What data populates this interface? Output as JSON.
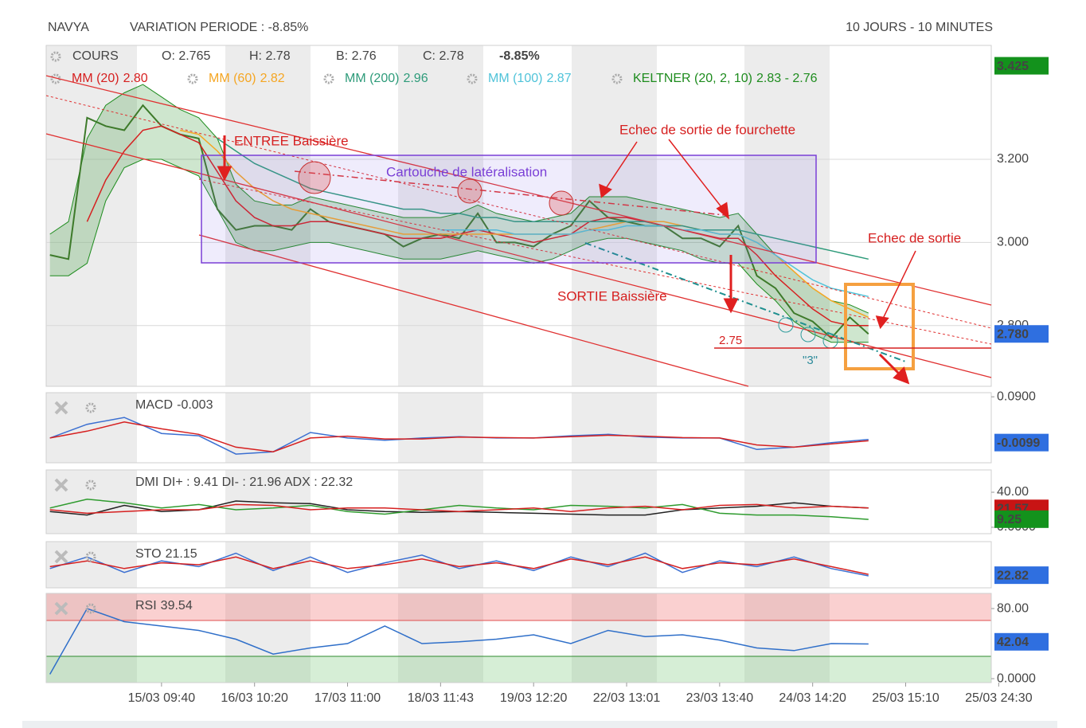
{
  "header": {
    "symbol": "NAVYA",
    "variation": "VARIATION PERIODE : -8.85%",
    "period": "10 JOURS - 10 MINUTES"
  },
  "chart_data": [
    {
      "type": "line",
      "ohlc": [
        "O: 2.765",
        "H: 2.78",
        "B: 2.76",
        "C: 2.78"
      ],
      "change": "-8.85%",
      "xlim": [
        -1.24,
        8.92
      ],
      "ylim": [
        2.654,
        3.474
      ],
      "yticks": [
        {
          "value": 2.8,
          "label": "2.800"
        },
        {
          "value": 3.0,
          "label": "3.000"
        },
        {
          "value": 3.2,
          "label": "3.200"
        }
      ],
      "grid": true,
      "badges": [
        {
          "value": 3.425,
          "label": "3.425",
          "color": "#13921c"
        },
        {
          "value": 2.78,
          "label": "2.780",
          "color": "#2f6fe0"
        }
      ],
      "x": [
        -1.2,
        -1.0,
        -0.8,
        -0.6,
        -0.4,
        -0.2,
        0.0,
        0.2,
        0.4,
        0.6,
        0.8,
        1.0,
        1.2,
        1.4,
        1.6,
        1.8,
        2.0,
        2.2,
        2.4,
        2.6,
        2.8,
        3.0,
        3.2,
        3.4,
        3.6,
        3.8,
        4.0,
        4.2,
        4.4,
        4.6,
        4.8,
        5.0,
        5.2,
        5.4,
        5.6,
        5.8,
        6.0,
        6.2,
        6.4,
        6.6,
        6.8,
        7.0,
        7.2,
        7.4,
        7.6
      ],
      "series": [
        {
          "name": "COURS",
          "color": "#3d7a2a",
          "values": [
            2.97,
            2.96,
            3.3,
            3.28,
            3.27,
            3.33,
            3.28,
            3.26,
            3.25,
            3.08,
            3.03,
            3.04,
            3.04,
            3.03,
            3.08,
            3.05,
            3.04,
            3.03,
            3.02,
            2.99,
            3.01,
            3.02,
            3.01,
            3.07,
            3.0,
            3.0,
            2.99,
            3.02,
            3.04,
            3.1,
            3.06,
            3.05,
            3.04,
            3.04,
            3.01,
            3.01,
            2.99,
            3.04,
            2.92,
            2.89,
            2.83,
            2.81,
            2.77,
            2.82,
            2.78
          ]
        },
        {
          "name": "MM (20)",
          "legend_value": "2.80",
          "color": "#d62020",
          "values": [
            null,
            null,
            3.05,
            3.15,
            3.22,
            3.27,
            3.28,
            3.26,
            3.24,
            3.17,
            3.1,
            3.06,
            3.04,
            3.04,
            3.05,
            3.05,
            3.04,
            3.03,
            3.02,
            3.01,
            3.01,
            3.01,
            3.02,
            3.03,
            3.02,
            3.01,
            3.0,
            3.01,
            3.02,
            3.05,
            3.06,
            3.06,
            3.05,
            3.04,
            3.03,
            3.02,
            3.01,
            3.01,
            2.97,
            2.92,
            2.88,
            2.84,
            2.81,
            2.8,
            2.8
          ]
        },
        {
          "name": "MM (60)",
          "legend_value": "2.82",
          "color": "#f5a623",
          "values": [
            null,
            null,
            null,
            null,
            null,
            null,
            null,
            3.27,
            3.26,
            3.22,
            3.17,
            3.13,
            3.1,
            3.08,
            3.07,
            3.06,
            3.05,
            3.04,
            3.03,
            3.02,
            3.02,
            3.02,
            3.02,
            3.02,
            3.02,
            3.02,
            3.02,
            3.02,
            3.02,
            3.03,
            3.04,
            3.05,
            3.05,
            3.05,
            3.04,
            3.03,
            3.02,
            3.02,
            3.0,
            2.97,
            2.93,
            2.89,
            2.86,
            2.84,
            2.82
          ]
        },
        {
          "name": "MM (200)",
          "legend_value": "2.96",
          "color": "#2e9b7a",
          "values": [
            null,
            null,
            null,
            null,
            null,
            null,
            null,
            null,
            null,
            3.25,
            3.22,
            3.19,
            3.17,
            3.15,
            3.13,
            3.12,
            3.11,
            3.1,
            3.09,
            3.08,
            3.08,
            3.07,
            3.07,
            3.06,
            3.06,
            3.05,
            3.05,
            3.05,
            3.05,
            3.05,
            3.05,
            3.05,
            3.05,
            3.04,
            3.04,
            3.03,
            3.03,
            3.03,
            3.02,
            3.01,
            3.0,
            2.99,
            2.98,
            2.97,
            2.96
          ]
        },
        {
          "name": "MM (100)",
          "legend_value": "2.87",
          "color": "#4fc3d9",
          "values": [
            null,
            null,
            null,
            null,
            null,
            null,
            null,
            null,
            null,
            null,
            null,
            null,
            null,
            null,
            null,
            null,
            null,
            null,
            null,
            null,
            null,
            3.03,
            3.03,
            3.03,
            3.03,
            3.02,
            3.02,
            3.02,
            3.02,
            3.03,
            3.03,
            3.04,
            3.04,
            3.04,
            3.03,
            3.03,
            3.02,
            3.02,
            3.0,
            2.97,
            2.94,
            2.91,
            2.89,
            2.88,
            2.87
          ]
        },
        {
          "name": "KELTNER (20, 2, 10)",
          "legend_value": "2.83 - 2.76",
          "color": "#1e8c1e",
          "values": [
            3.02,
            3.05,
            3.25,
            3.33,
            3.36,
            3.38,
            3.35,
            3.32,
            3.3,
            3.25,
            3.14,
            3.1,
            3.09,
            3.09,
            3.11,
            3.1,
            3.09,
            3.08,
            3.07,
            3.06,
            3.06,
            3.06,
            3.07,
            3.09,
            3.07,
            3.06,
            3.05,
            3.06,
            3.07,
            3.11,
            3.11,
            3.11,
            3.1,
            3.09,
            3.08,
            3.07,
            3.06,
            3.07,
            3.02,
            2.97,
            2.93,
            2.89,
            2.86,
            2.85,
            2.83
          ],
          "lower": [
            2.92,
            2.92,
            2.95,
            3.1,
            3.18,
            3.2,
            3.2,
            3.18,
            3.16,
            3.08,
            3.0,
            2.98,
            2.98,
            2.99,
            3.0,
            3.0,
            2.99,
            2.98,
            2.97,
            2.96,
            2.96,
            2.96,
            2.97,
            2.98,
            2.97,
            2.96,
            2.95,
            2.96,
            2.98,
            3.0,
            3.01,
            3.01,
            3.0,
            2.99,
            2.98,
            2.96,
            2.95,
            2.95,
            2.9,
            2.86,
            2.81,
            2.78,
            2.76,
            2.76,
            2.76
          ]
        }
      ],
      "annotations": [
        "ENTREE Baissière",
        "Cartouche de latéralisation",
        "Echec de sortie de fourchette",
        "Echec de sortie",
        "SORTIE Baissière",
        "2.75",
        "\"3\""
      ]
    },
    {
      "type": "line",
      "title": "MACD",
      "title_value": "-0.003",
      "xlim": [
        -1.24,
        8.92
      ],
      "ylim": [
        -0.054,
        0.099
      ],
      "yticks": [
        {
          "value": 0.09,
          "label": "0.0900"
        }
      ],
      "badges": [
        {
          "value": -0.0099,
          "label": "-0.0099",
          "color": "#2f6fe0"
        }
      ],
      "x": [
        -1.2,
        -0.8,
        -0.4,
        0.0,
        0.4,
        0.8,
        1.2,
        1.6,
        2.0,
        2.4,
        2.8,
        3.2,
        3.6,
        4.0,
        4.4,
        4.8,
        5.2,
        5.6,
        6.0,
        6.4,
        6.8,
        7.2,
        7.6
      ],
      "series": [
        {
          "color": "#3b6fd1",
          "values": [
            0,
            0.03,
            0.045,
            0.01,
            0.005,
            -0.035,
            -0.03,
            0.012,
            0,
            -0.005,
            0,
            0.003,
            0,
            0,
            0.005,
            0.008,
            0.002,
            0,
            0,
            -0.025,
            -0.02,
            -0.01,
            -0.003
          ]
        },
        {
          "color": "#d62020",
          "values": [
            0,
            0.015,
            0.035,
            0.02,
            0.008,
            -0.02,
            -0.03,
            0,
            0.004,
            -0.002,
            -0.002,
            0.002,
            0.001,
            0,
            0.003,
            0.006,
            0.004,
            0.001,
            0,
            -0.015,
            -0.02,
            -0.013,
            -0.006
          ]
        }
      ]
    },
    {
      "type": "line",
      "title": "DMI",
      "title_value": "DI+ : 9.41 DI- : 21.96 ADX : 22.32",
      "xlim": [
        -1.24,
        8.92
      ],
      "ylim": [
        -7.3,
        65.5
      ],
      "yticks": [
        {
          "value": 40,
          "label": "40.00"
        },
        {
          "value": 0,
          "label": "0.0000"
        }
      ],
      "badges": [
        {
          "value": 21.57,
          "label": "21.57",
          "color": "#c81414"
        },
        {
          "value": 9.25,
          "label": "9.25",
          "color": "#13921c"
        }
      ],
      "x": [
        -1.2,
        -0.8,
        -0.4,
        0.0,
        0.4,
        0.8,
        1.2,
        1.6,
        2.0,
        2.4,
        2.8,
        3.2,
        3.6,
        4.0,
        4.4,
        4.8,
        5.2,
        5.6,
        6.0,
        6.4,
        6.8,
        7.2,
        7.6
      ],
      "series": [
        {
          "color": "#222222",
          "values": [
            18,
            14,
            25,
            18,
            20,
            30,
            28,
            27,
            20,
            18,
            17,
            18,
            17,
            16,
            15,
            14,
            14,
            20,
            22,
            24,
            28,
            24,
            22
          ]
        },
        {
          "color": "#2e9b2e",
          "values": [
            22,
            32,
            28,
            22,
            26,
            20,
            22,
            25,
            18,
            15,
            20,
            25,
            22,
            20,
            25,
            24,
            22,
            26,
            16,
            14,
            14,
            12,
            9
          ]
        },
        {
          "color": "#d62020",
          "values": [
            20,
            16,
            18,
            20,
            20,
            26,
            25,
            20,
            22,
            22,
            20,
            18,
            20,
            22,
            18,
            22,
            24,
            20,
            25,
            26,
            22,
            24,
            22
          ]
        }
      ]
    },
    {
      "type": "line",
      "title": "STO",
      "title_value": "21.15",
      "xlim": [
        -1.24,
        8.92
      ],
      "ylim": [
        -10,
        110
      ],
      "badges": [
        {
          "value": 22.82,
          "label": "22.82",
          "color": "#2f6fe0"
        }
      ],
      "x": [
        -1.2,
        -0.8,
        -0.4,
        0.0,
        0.4,
        0.8,
        1.2,
        1.6,
        2.0,
        2.4,
        2.8,
        3.2,
        3.6,
        4.0,
        4.4,
        4.8,
        5.2,
        5.6,
        6.0,
        6.4,
        6.8,
        7.2,
        7.6
      ],
      "series": [
        {
          "color": "#3b6fd1",
          "values": [
            40,
            70,
            30,
            60,
            45,
            80,
            35,
            70,
            30,
            55,
            75,
            40,
            60,
            35,
            70,
            45,
            80,
            30,
            60,
            45,
            70,
            40,
            21
          ]
        },
        {
          "color": "#d62020",
          "values": [
            45,
            60,
            40,
            55,
            50,
            70,
            40,
            60,
            40,
            50,
            65,
            45,
            55,
            40,
            65,
            50,
            70,
            40,
            55,
            50,
            65,
            45,
            25
          ]
        }
      ]
    },
    {
      "type": "line",
      "title": "RSI",
      "title_value": "39.54",
      "xlim": [
        -1.24,
        8.92
      ],
      "ylim": [
        -4.5,
        97.3
      ],
      "yticks": [
        {
          "value": 80,
          "label": "80.00"
        },
        {
          "value": 0,
          "label": "0.0000"
        }
      ],
      "badges": [
        {
          "value": 42.04,
          "label": "42.04",
          "color": "#2f6fe0"
        }
      ],
      "xticks": [
        {
          "value": 0,
          "label": "15/03 09:40"
        },
        {
          "value": 1,
          "label": "16/03 10:20"
        },
        {
          "value": 2,
          "label": "17/03 11:00"
        },
        {
          "value": 3,
          "label": "18/03 11:43"
        },
        {
          "value": 4,
          "label": "19/03 12:20"
        },
        {
          "value": 5,
          "label": "22/03 13:01"
        },
        {
          "value": 6,
          "label": "23/03 13:40"
        },
        {
          "value": 7,
          "label": "24/03 14:20"
        },
        {
          "value": 8,
          "label": "25/03 15:10"
        },
        {
          "value": 9,
          "label": "25/03 24:30"
        }
      ],
      "x": [
        -1.2,
        -0.8,
        -0.4,
        0.0,
        0.4,
        0.8,
        1.2,
        1.6,
        2.0,
        2.4,
        2.8,
        3.2,
        3.6,
        4.0,
        4.4,
        4.8,
        5.2,
        5.6,
        6.0,
        6.4,
        6.8,
        7.2,
        7.6
      ],
      "series": [
        {
          "color": "#2f6fc9",
          "values": [
            5,
            80,
            65,
            60,
            55,
            45,
            28,
            35,
            40,
            60,
            40,
            42,
            45,
            50,
            40,
            55,
            48,
            50,
            44,
            35,
            32,
            40,
            39.54
          ]
        }
      ]
    }
  ]
}
